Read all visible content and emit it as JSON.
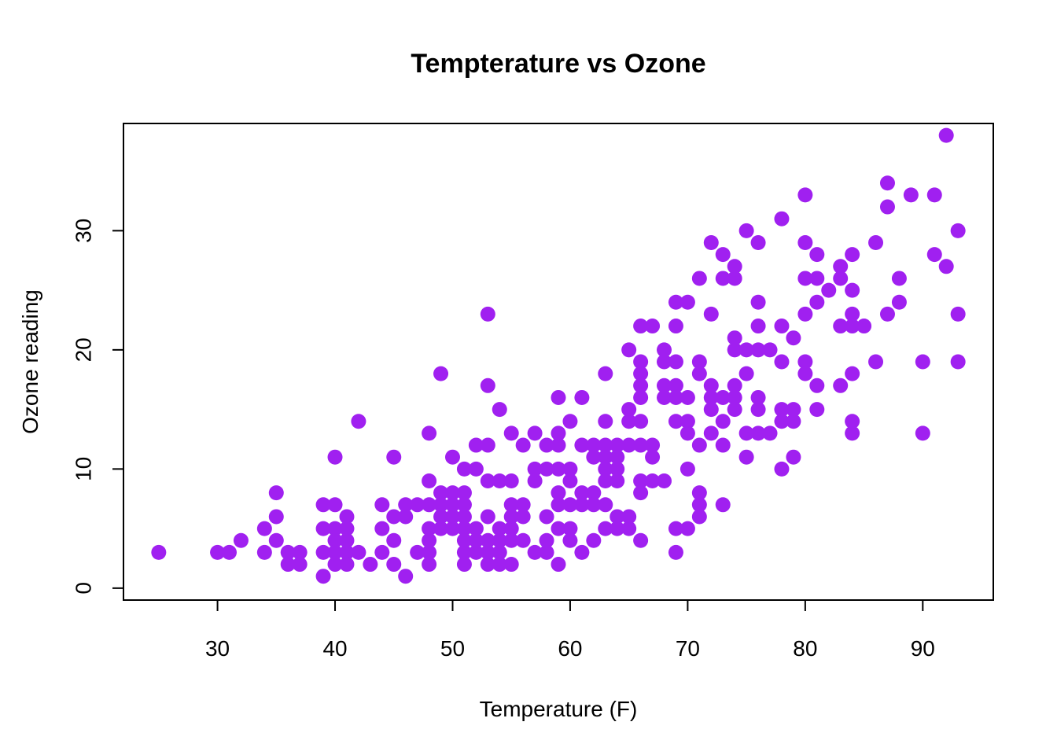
{
  "chart_data": {
    "type": "scatter",
    "title": "Tempterature vs Ozone",
    "xlabel": "Temperature (F)",
    "ylabel": "Ozone reading",
    "xlim": [
      22,
      96
    ],
    "ylim": [
      -1,
      39
    ],
    "xticks": [
      "30",
      "40",
      "50",
      "60",
      "70",
      "80",
      "90"
    ],
    "yticks": [
      "0",
      "10",
      "20",
      "30"
    ],
    "grid": false,
    "box": true,
    "point_color": "#a020f0",
    "series": [
      {
        "points": [
          [
            25,
            3
          ],
          [
            30,
            3
          ],
          [
            31,
            3
          ],
          [
            32,
            4
          ],
          [
            34,
            3
          ],
          [
            34,
            5
          ],
          [
            35,
            8
          ],
          [
            35,
            6
          ],
          [
            35,
            4
          ],
          [
            36,
            3
          ],
          [
            36,
            2
          ],
          [
            37,
            3
          ],
          [
            37,
            2
          ],
          [
            39,
            7
          ],
          [
            39,
            5
          ],
          [
            39,
            3
          ],
          [
            39,
            1
          ],
          [
            40,
            11
          ],
          [
            40,
            7
          ],
          [
            40,
            5
          ],
          [
            40,
            4
          ],
          [
            40,
            3
          ],
          [
            40,
            2
          ],
          [
            41,
            6
          ],
          [
            41,
            5
          ],
          [
            41,
            4
          ],
          [
            41,
            3
          ],
          [
            41,
            2
          ],
          [
            42,
            14
          ],
          [
            42,
            3
          ],
          [
            43,
            2
          ],
          [
            44,
            7
          ],
          [
            44,
            5
          ],
          [
            44,
            3
          ],
          [
            45,
            11
          ],
          [
            45,
            6
          ],
          [
            45,
            4
          ],
          [
            45,
            2
          ],
          [
            46,
            7
          ],
          [
            46,
            6
          ],
          [
            46,
            1
          ],
          [
            47,
            7
          ],
          [
            47,
            3
          ],
          [
            48,
            13
          ],
          [
            48,
            9
          ],
          [
            48,
            7
          ],
          [
            48,
            5
          ],
          [
            48,
            4
          ],
          [
            48,
            3
          ],
          [
            48,
            2
          ],
          [
            49,
            18
          ],
          [
            49,
            8
          ],
          [
            49,
            7
          ],
          [
            49,
            6
          ],
          [
            49,
            5
          ],
          [
            50,
            11
          ],
          [
            50,
            8
          ],
          [
            50,
            7
          ],
          [
            50,
            6
          ],
          [
            50,
            5
          ],
          [
            51,
            10
          ],
          [
            51,
            8
          ],
          [
            51,
            7
          ],
          [
            51,
            6
          ],
          [
            51,
            5
          ],
          [
            51,
            4
          ],
          [
            51,
            3
          ],
          [
            51,
            2
          ],
          [
            52,
            12
          ],
          [
            52,
            10
          ],
          [
            52,
            5
          ],
          [
            52,
            4
          ],
          [
            52,
            3
          ],
          [
            53,
            23
          ],
          [
            53,
            17
          ],
          [
            53,
            12
          ],
          [
            53,
            9
          ],
          [
            53,
            6
          ],
          [
            53,
            4
          ],
          [
            53,
            3
          ],
          [
            53,
            2
          ],
          [
            54,
            15
          ],
          [
            54,
            9
          ],
          [
            54,
            5
          ],
          [
            54,
            4
          ],
          [
            54,
            3
          ],
          [
            54,
            2
          ],
          [
            55,
            13
          ],
          [
            55,
            9
          ],
          [
            55,
            7
          ],
          [
            55,
            6
          ],
          [
            55,
            5
          ],
          [
            55,
            4
          ],
          [
            55,
            2
          ],
          [
            56,
            12
          ],
          [
            56,
            7
          ],
          [
            56,
            6
          ],
          [
            56,
            4
          ],
          [
            57,
            13
          ],
          [
            57,
            10
          ],
          [
            57,
            9
          ],
          [
            57,
            3
          ],
          [
            58,
            12
          ],
          [
            58,
            10
          ],
          [
            58,
            6
          ],
          [
            58,
            4
          ],
          [
            58,
            3
          ],
          [
            59,
            16
          ],
          [
            59,
            13
          ],
          [
            59,
            12
          ],
          [
            59,
            10
          ],
          [
            59,
            8
          ],
          [
            59,
            7
          ],
          [
            59,
            5
          ],
          [
            59,
            2
          ],
          [
            60,
            14
          ],
          [
            60,
            10
          ],
          [
            60,
            9
          ],
          [
            60,
            7
          ],
          [
            60,
            5
          ],
          [
            60,
            4
          ],
          [
            61,
            16
          ],
          [
            61,
            12
          ],
          [
            61,
            8
          ],
          [
            61,
            7
          ],
          [
            61,
            3
          ],
          [
            62,
            12
          ],
          [
            62,
            11
          ],
          [
            62,
            8
          ],
          [
            62,
            7
          ],
          [
            62,
            4
          ],
          [
            63,
            18
          ],
          [
            63,
            14
          ],
          [
            63,
            12
          ],
          [
            63,
            11
          ],
          [
            63,
            10
          ],
          [
            63,
            9
          ],
          [
            63,
            7
          ],
          [
            63,
            5
          ],
          [
            64,
            12
          ],
          [
            64,
            11
          ],
          [
            64,
            10
          ],
          [
            64,
            9
          ],
          [
            64,
            6
          ],
          [
            64,
            5
          ],
          [
            65,
            20
          ],
          [
            65,
            15
          ],
          [
            65,
            14
          ],
          [
            65,
            12
          ],
          [
            65,
            6
          ],
          [
            65,
            5
          ],
          [
            66,
            22
          ],
          [
            66,
            19
          ],
          [
            66,
            18
          ],
          [
            66,
            17
          ],
          [
            66,
            16
          ],
          [
            66,
            14
          ],
          [
            66,
            12
          ],
          [
            66,
            9
          ],
          [
            66,
            8
          ],
          [
            66,
            4
          ],
          [
            67,
            22
          ],
          [
            67,
            12
          ],
          [
            67,
            11
          ],
          [
            67,
            9
          ],
          [
            68,
            20
          ],
          [
            68,
            19
          ],
          [
            68,
            17
          ],
          [
            68,
            16
          ],
          [
            68,
            9
          ],
          [
            69,
            24
          ],
          [
            69,
            22
          ],
          [
            69,
            19
          ],
          [
            69,
            17
          ],
          [
            69,
            16
          ],
          [
            69,
            14
          ],
          [
            69,
            5
          ],
          [
            69,
            3
          ],
          [
            70,
            24
          ],
          [
            70,
            16
          ],
          [
            70,
            14
          ],
          [
            70,
            13
          ],
          [
            70,
            10
          ],
          [
            70,
            5
          ],
          [
            71,
            26
          ],
          [
            71,
            19
          ],
          [
            71,
            18
          ],
          [
            71,
            12
          ],
          [
            71,
            8
          ],
          [
            71,
            7
          ],
          [
            71,
            6
          ],
          [
            72,
            29
          ],
          [
            72,
            23
          ],
          [
            72,
            17
          ],
          [
            72,
            16
          ],
          [
            72,
            15
          ],
          [
            72,
            13
          ],
          [
            73,
            28
          ],
          [
            73,
            26
          ],
          [
            73,
            16
          ],
          [
            73,
            14
          ],
          [
            73,
            12
          ],
          [
            73,
            7
          ],
          [
            74,
            27
          ],
          [
            74,
            26
          ],
          [
            74,
            21
          ],
          [
            74,
            20
          ],
          [
            74,
            17
          ],
          [
            74,
            16
          ],
          [
            74,
            15
          ],
          [
            75,
            30
          ],
          [
            75,
            20
          ],
          [
            75,
            18
          ],
          [
            75,
            13
          ],
          [
            75,
            11
          ],
          [
            76,
            29
          ],
          [
            76,
            24
          ],
          [
            76,
            22
          ],
          [
            76,
            20
          ],
          [
            76,
            16
          ],
          [
            76,
            15
          ],
          [
            76,
            13
          ],
          [
            77,
            20
          ],
          [
            77,
            13
          ],
          [
            78,
            31
          ],
          [
            78,
            22
          ],
          [
            78,
            19
          ],
          [
            78,
            15
          ],
          [
            78,
            14
          ],
          [
            78,
            10
          ],
          [
            79,
            21
          ],
          [
            79,
            15
          ],
          [
            79,
            14
          ],
          [
            79,
            11
          ],
          [
            80,
            33
          ],
          [
            80,
            29
          ],
          [
            80,
            26
          ],
          [
            80,
            23
          ],
          [
            80,
            19
          ],
          [
            80,
            18
          ],
          [
            81,
            28
          ],
          [
            81,
            26
          ],
          [
            81,
            24
          ],
          [
            81,
            17
          ],
          [
            81,
            15
          ],
          [
            82,
            25
          ],
          [
            83,
            27
          ],
          [
            83,
            26
          ],
          [
            83,
            22
          ],
          [
            83,
            17
          ],
          [
            84,
            28
          ],
          [
            84,
            25
          ],
          [
            84,
            23
          ],
          [
            84,
            22
          ],
          [
            84,
            18
          ],
          [
            84,
            14
          ],
          [
            84,
            13
          ],
          [
            85,
            22
          ],
          [
            86,
            29
          ],
          [
            86,
            19
          ],
          [
            87,
            34
          ],
          [
            87,
            32
          ],
          [
            87,
            23
          ],
          [
            88,
            26
          ],
          [
            88,
            24
          ],
          [
            89,
            33
          ],
          [
            90,
            19
          ],
          [
            90,
            13
          ],
          [
            91,
            33
          ],
          [
            91,
            28
          ],
          [
            92,
            38
          ],
          [
            92,
            27
          ],
          [
            93,
            30
          ],
          [
            93,
            23
          ],
          [
            93,
            19
          ]
        ]
      }
    ]
  }
}
